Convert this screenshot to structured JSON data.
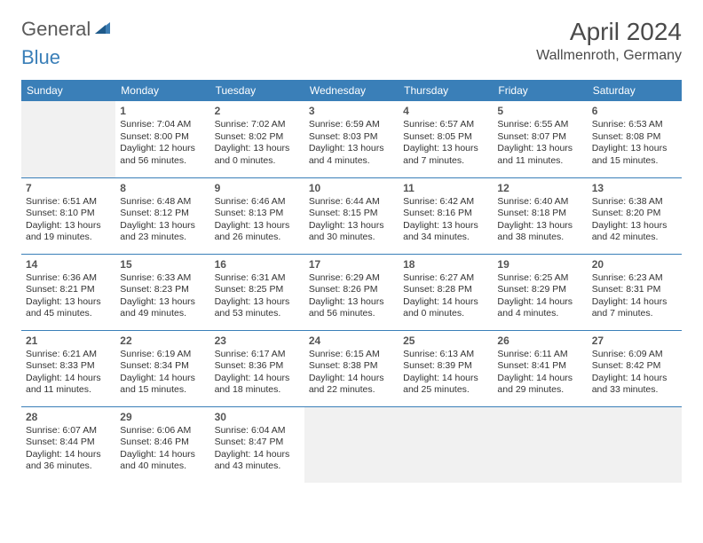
{
  "logo": {
    "part1": "General",
    "part2": "Blue"
  },
  "title": "April 2024",
  "location": "Wallmenroth, Germany",
  "colors": {
    "header_bg": "#3a7fb8",
    "header_text": "#ffffff",
    "cell_border": "#3a7fb8",
    "empty_bg": "#f1f1f1",
    "text": "#333333",
    "title_text": "#4a4a4a",
    "logo_gray": "#5a5a5a",
    "logo_blue": "#3a7fb8"
  },
  "layout": {
    "columns": 7,
    "rows": 5,
    "start_offset": 1
  },
  "weekdays": [
    "Sunday",
    "Monday",
    "Tuesday",
    "Wednesday",
    "Thursday",
    "Friday",
    "Saturday"
  ],
  "days": [
    {
      "n": 1,
      "sr": "7:04 AM",
      "ss": "8:00 PM",
      "dl": "12 hours and 56 minutes."
    },
    {
      "n": 2,
      "sr": "7:02 AM",
      "ss": "8:02 PM",
      "dl": "13 hours and 0 minutes."
    },
    {
      "n": 3,
      "sr": "6:59 AM",
      "ss": "8:03 PM",
      "dl": "13 hours and 4 minutes."
    },
    {
      "n": 4,
      "sr": "6:57 AM",
      "ss": "8:05 PM",
      "dl": "13 hours and 7 minutes."
    },
    {
      "n": 5,
      "sr": "6:55 AM",
      "ss": "8:07 PM",
      "dl": "13 hours and 11 minutes."
    },
    {
      "n": 6,
      "sr": "6:53 AM",
      "ss": "8:08 PM",
      "dl": "13 hours and 15 minutes."
    },
    {
      "n": 7,
      "sr": "6:51 AM",
      "ss": "8:10 PM",
      "dl": "13 hours and 19 minutes."
    },
    {
      "n": 8,
      "sr": "6:48 AM",
      "ss": "8:12 PM",
      "dl": "13 hours and 23 minutes."
    },
    {
      "n": 9,
      "sr": "6:46 AM",
      "ss": "8:13 PM",
      "dl": "13 hours and 26 minutes."
    },
    {
      "n": 10,
      "sr": "6:44 AM",
      "ss": "8:15 PM",
      "dl": "13 hours and 30 minutes."
    },
    {
      "n": 11,
      "sr": "6:42 AM",
      "ss": "8:16 PM",
      "dl": "13 hours and 34 minutes."
    },
    {
      "n": 12,
      "sr": "6:40 AM",
      "ss": "8:18 PM",
      "dl": "13 hours and 38 minutes."
    },
    {
      "n": 13,
      "sr": "6:38 AM",
      "ss": "8:20 PM",
      "dl": "13 hours and 42 minutes."
    },
    {
      "n": 14,
      "sr": "6:36 AM",
      "ss": "8:21 PM",
      "dl": "13 hours and 45 minutes."
    },
    {
      "n": 15,
      "sr": "6:33 AM",
      "ss": "8:23 PM",
      "dl": "13 hours and 49 minutes."
    },
    {
      "n": 16,
      "sr": "6:31 AM",
      "ss": "8:25 PM",
      "dl": "13 hours and 53 minutes."
    },
    {
      "n": 17,
      "sr": "6:29 AM",
      "ss": "8:26 PM",
      "dl": "13 hours and 56 minutes."
    },
    {
      "n": 18,
      "sr": "6:27 AM",
      "ss": "8:28 PM",
      "dl": "14 hours and 0 minutes."
    },
    {
      "n": 19,
      "sr": "6:25 AM",
      "ss": "8:29 PM",
      "dl": "14 hours and 4 minutes."
    },
    {
      "n": 20,
      "sr": "6:23 AM",
      "ss": "8:31 PM",
      "dl": "14 hours and 7 minutes."
    },
    {
      "n": 21,
      "sr": "6:21 AM",
      "ss": "8:33 PM",
      "dl": "14 hours and 11 minutes."
    },
    {
      "n": 22,
      "sr": "6:19 AM",
      "ss": "8:34 PM",
      "dl": "14 hours and 15 minutes."
    },
    {
      "n": 23,
      "sr": "6:17 AM",
      "ss": "8:36 PM",
      "dl": "14 hours and 18 minutes."
    },
    {
      "n": 24,
      "sr": "6:15 AM",
      "ss": "8:38 PM",
      "dl": "14 hours and 22 minutes."
    },
    {
      "n": 25,
      "sr": "6:13 AM",
      "ss": "8:39 PM",
      "dl": "14 hours and 25 minutes."
    },
    {
      "n": 26,
      "sr": "6:11 AM",
      "ss": "8:41 PM",
      "dl": "14 hours and 29 minutes."
    },
    {
      "n": 27,
      "sr": "6:09 AM",
      "ss": "8:42 PM",
      "dl": "14 hours and 33 minutes."
    },
    {
      "n": 28,
      "sr": "6:07 AM",
      "ss": "8:44 PM",
      "dl": "14 hours and 36 minutes."
    },
    {
      "n": 29,
      "sr": "6:06 AM",
      "ss": "8:46 PM",
      "dl": "14 hours and 40 minutes."
    },
    {
      "n": 30,
      "sr": "6:04 AM",
      "ss": "8:47 PM",
      "dl": "14 hours and 43 minutes."
    }
  ],
  "labels": {
    "sunrise": "Sunrise:",
    "sunset": "Sunset:",
    "daylight": "Daylight:"
  }
}
